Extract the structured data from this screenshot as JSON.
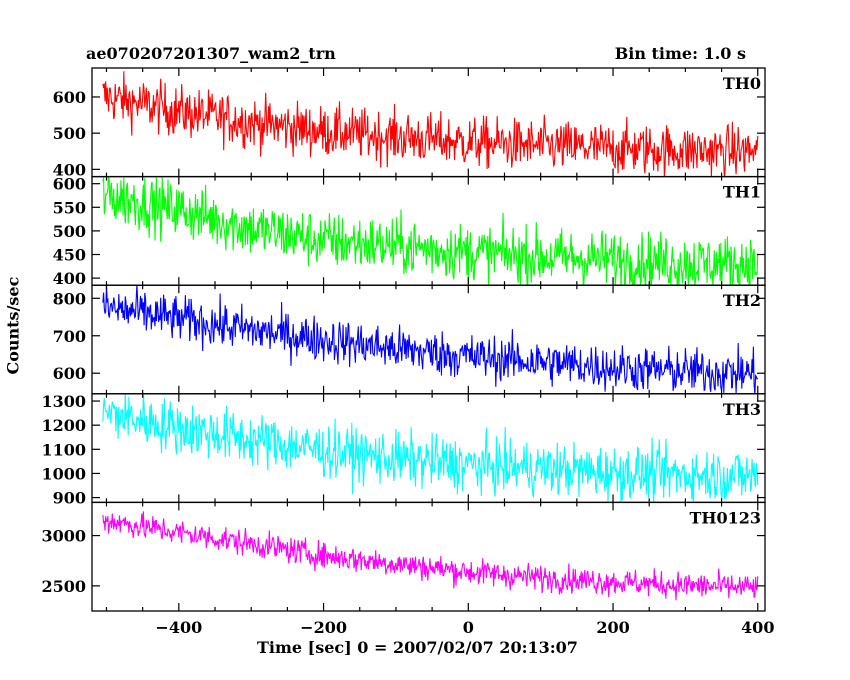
{
  "header": {
    "title": "ae070207201307_wam2_trn",
    "bin_time": "Bin time: 1.0 s"
  },
  "axes": {
    "xlabel": "Time [sec] 0 = 2007/02/07 20:13:07",
    "ylabel": "Counts/sec"
  },
  "chart_data": {
    "type": "line",
    "title": "ae070207201307_wam2_trn",
    "xlabel": "Time [sec] 0 = 2007/02/07 20:13:07",
    "ylabel": "Counts/sec",
    "xlim": [
      -520,
      410
    ],
    "xticks": [
      -400,
      -200,
      0,
      200,
      400
    ],
    "grid": false,
    "panels": [
      {
        "name": "TH0",
        "color": "#ff0000",
        "ylim": [
          380,
          680
        ],
        "yticks": [
          400,
          500,
          600
        ],
        "trend_x": [
          -500,
          -400,
          -300,
          -200,
          -100,
          0,
          100,
          200,
          300,
          400
        ],
        "trend_y": [
          600,
          560,
          530,
          505,
          490,
          475,
          465,
          458,
          452,
          450
        ],
        "noise": 35
      },
      {
        "name": "TH1",
        "color": "#00ff00",
        "ylim": [
          385,
          615
        ],
        "yticks": [
          400,
          450,
          500,
          550,
          600
        ],
        "trend_x": [
          -500,
          -400,
          -300,
          -200,
          -100,
          0,
          100,
          200,
          300,
          400
        ],
        "trend_y": [
          575,
          545,
          505,
          480,
          468,
          455,
          445,
          440,
          432,
          430
        ],
        "noise": 30
      },
      {
        "name": "TH2",
        "color": "#0000ff",
        "ylim": [
          545,
          835
        ],
        "yticks": [
          600,
          700,
          800
        ],
        "trend_x": [
          -500,
          -400,
          -300,
          -200,
          -100,
          0,
          100,
          200,
          300,
          400
        ],
        "trend_y": [
          775,
          745,
          715,
          690,
          665,
          645,
          630,
          615,
          605,
          600
        ],
        "noise": 30
      },
      {
        "name": "TH3",
        "color": "#00ffff",
        "ylim": [
          880,
          1330
        ],
        "yticks": [
          900,
          1000,
          1100,
          1200,
          1300
        ],
        "trend_x": [
          -500,
          -400,
          -300,
          -200,
          -100,
          0,
          100,
          200,
          300,
          400
        ],
        "trend_y": [
          1250,
          1190,
          1140,
          1095,
          1060,
          1035,
          1020,
          1005,
          995,
          990
        ],
        "noise": 55
      },
      {
        "name": "TH0123",
        "color": "#ff00ff",
        "ylim": [
          2250,
          3330
        ],
        "yticks": [
          2500,
          3000
        ],
        "trend_x": [
          -500,
          -400,
          -300,
          -200,
          -100,
          0,
          100,
          200,
          300,
          400
        ],
        "trend_y": [
          3150,
          3030,
          2920,
          2800,
          2720,
          2640,
          2580,
          2540,
          2505,
          2480
        ],
        "noise": 65
      }
    ]
  }
}
